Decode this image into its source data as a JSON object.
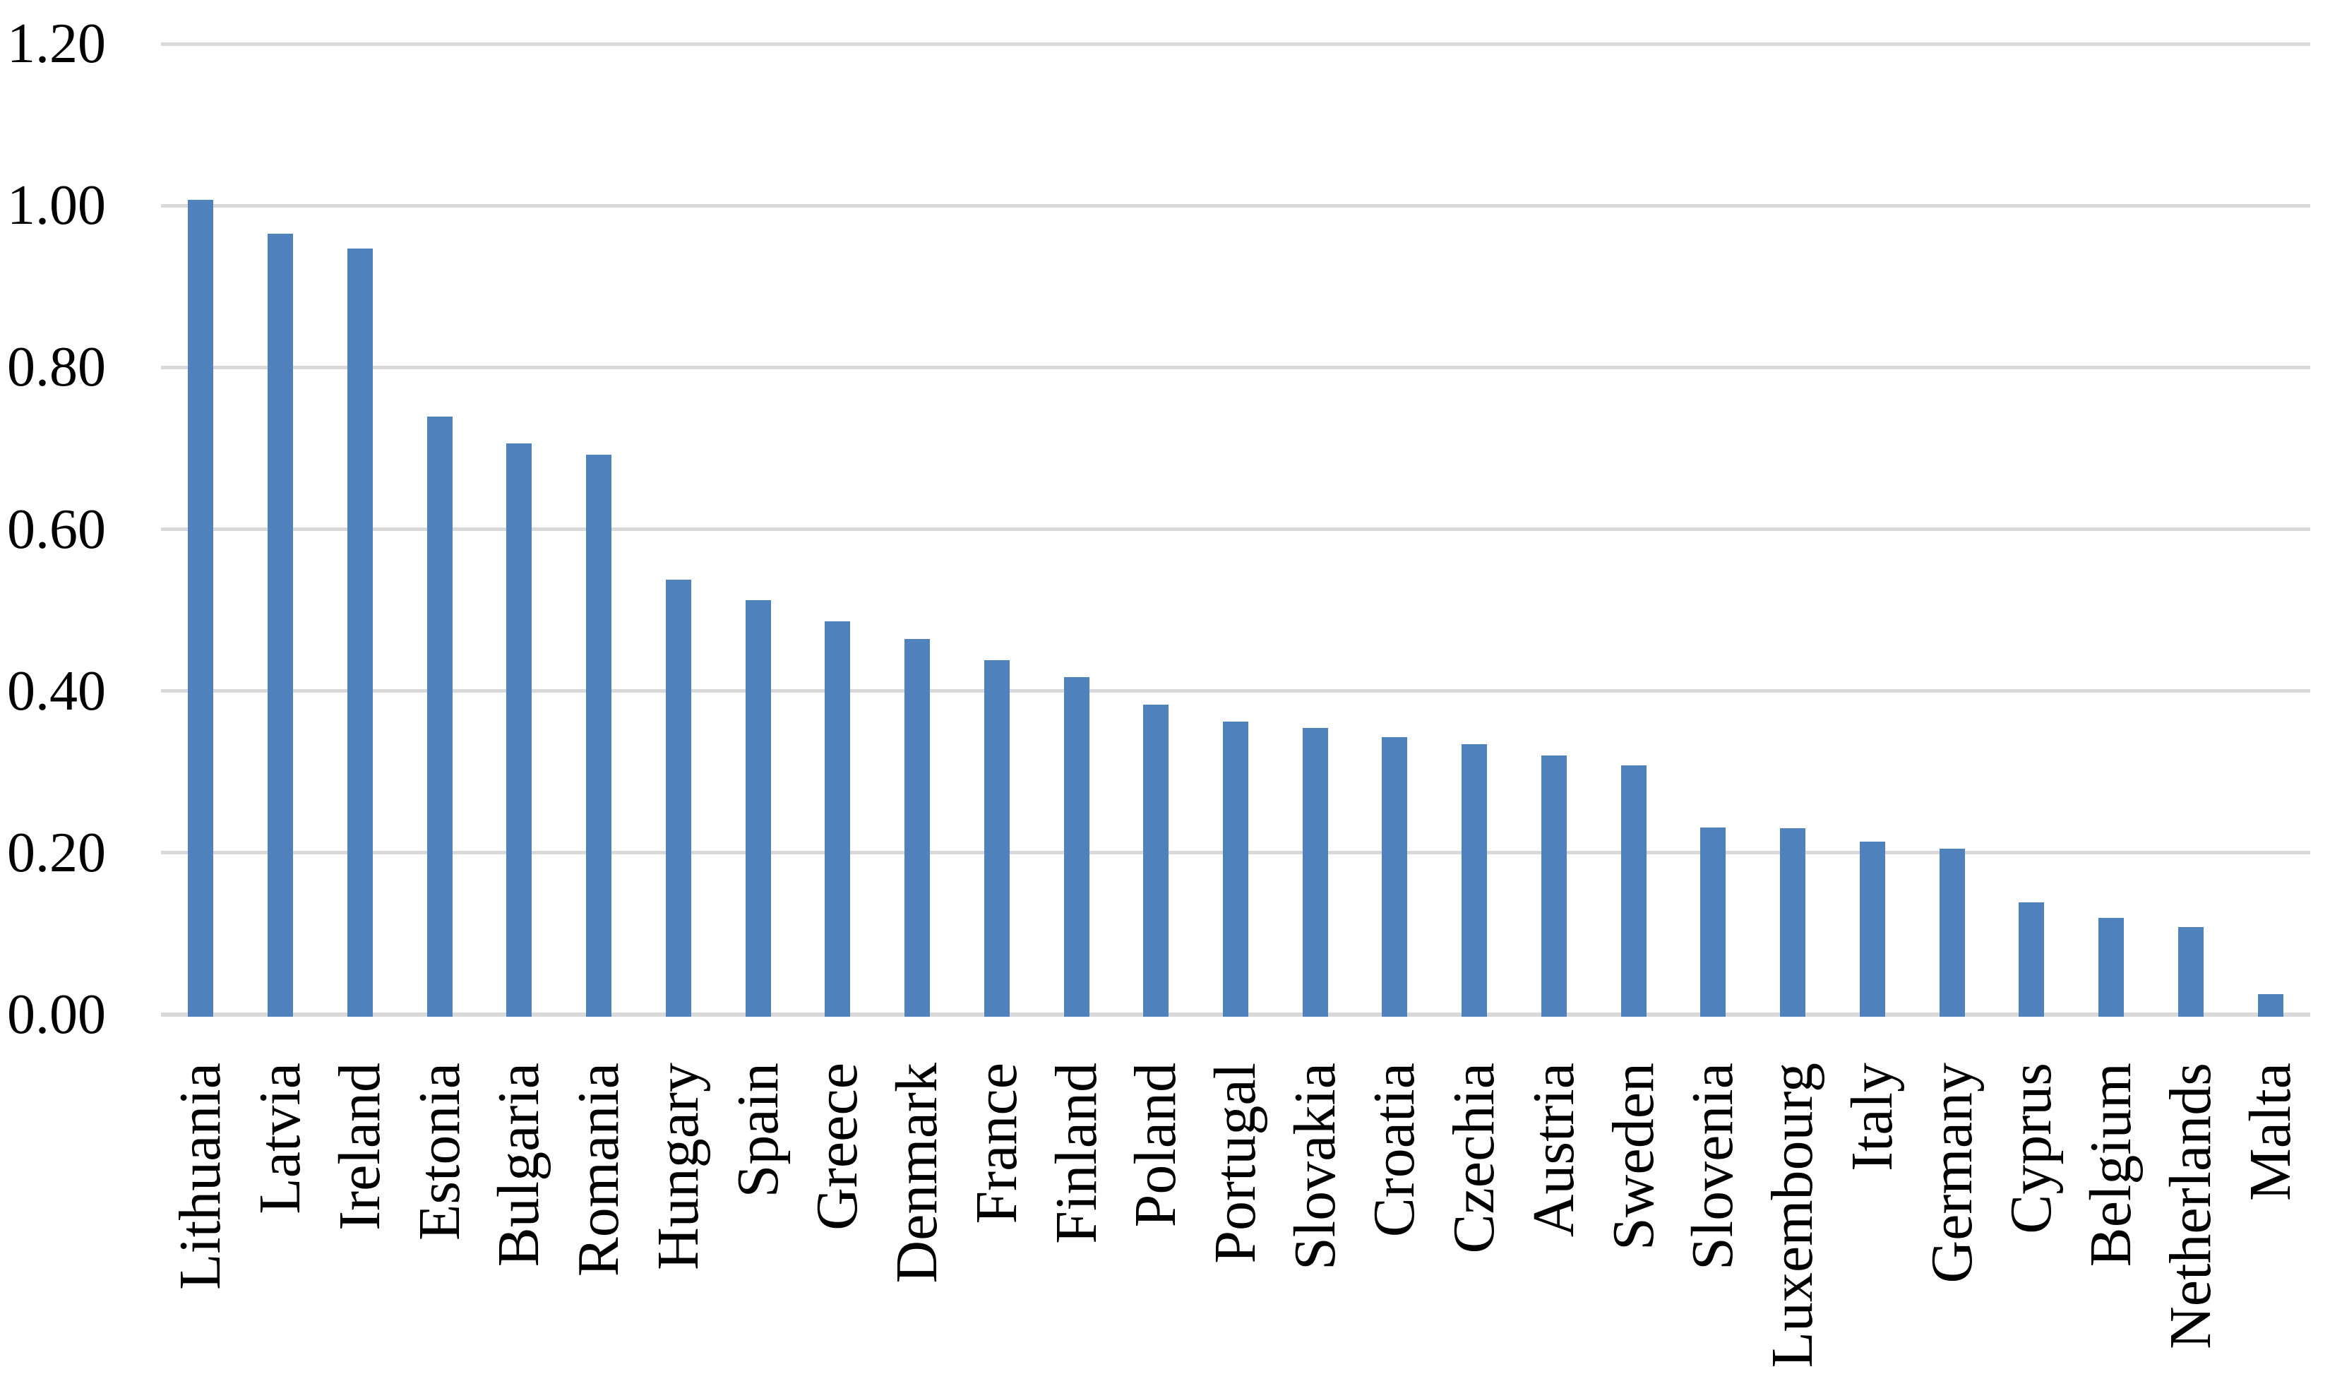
{
  "chart_data": {
    "type": "bar",
    "title": "",
    "xlabel": "",
    "ylabel": "",
    "categories": [
      "Lithuania",
      "Latvia",
      "Ireland",
      "Estonia",
      "Bulgaria",
      "Romania",
      "Hungary",
      "Spain",
      "Greece",
      "Denmark",
      "France",
      "Finland",
      "Poland",
      "Portugal",
      "Slovakia",
      "Croatia",
      "Czechia",
      "Austria",
      "Sweden",
      "Slovenia",
      "Luxembourg",
      "Italy",
      "Germany",
      "Cyprus",
      "Belgium",
      "Netherlands",
      "Malta"
    ],
    "values": [
      1.007,
      0.965,
      0.947,
      0.739,
      0.706,
      0.692,
      0.538,
      0.512,
      0.486,
      0.464,
      0.438,
      0.417,
      0.383,
      0.362,
      0.354,
      0.343,
      0.334,
      0.32,
      0.308,
      0.231,
      0.23,
      0.214,
      0.205,
      0.139,
      0.12,
      0.108,
      0.025
    ],
    "ylim": [
      0,
      1.2
    ],
    "ytick_step": 0.2,
    "ytick_labels": [
      "0.00",
      "0.20",
      "0.40",
      "0.60",
      "0.80",
      "1.00",
      "1.20"
    ],
    "grid": true,
    "legend": false,
    "bar_color": "#4F81BD",
    "gridline_color": "#D9D9D9",
    "axis_line_color": "#D9D9D9",
    "text_color": "#000000",
    "background_color": "#FFFFFF"
  }
}
